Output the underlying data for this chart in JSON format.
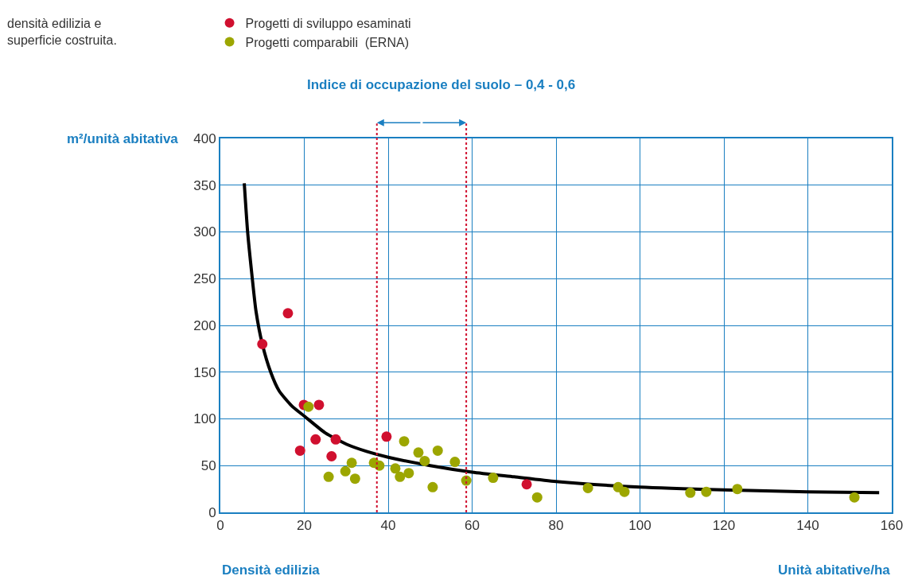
{
  "chart_data": {
    "type": "scatter",
    "title": "Indice di occupazione del suolo – 0,4 - 0,6",
    "xlabel": "Unità abitative/ha",
    "ylabel": "m²/unità abitativa",
    "annotations": [
      "densità edilizia e\nsuperficie costruita.",
      "Densità edilizia"
    ],
    "xlim": [
      0,
      160
    ],
    "xticks": [
      0,
      20,
      40,
      60,
      80,
      100,
      120,
      140,
      160
    ],
    "ylim": [
      0,
      400
    ],
    "yticks": [
      0,
      50,
      100,
      150,
      200,
      250,
      300,
      350,
      400
    ],
    "grid": true,
    "legend": "top",
    "marker": "circle",
    "ref_lines": [
      {
        "axis": "x",
        "value": 37.3,
        "color": "#d0102f",
        "line_style": "dotted"
      },
      {
        "axis": "x",
        "value": 58.6,
        "color": "#d0102f",
        "line_style": "dotted"
      }
    ],
    "series": [
      {
        "type": "line",
        "color": "#000000",
        "line_style": "solid",
        "marker": "none",
        "x": [
          5.7,
          6.5,
          7.5,
          8.5,
          10,
          12,
          14,
          17,
          20,
          25,
          30,
          35,
          40,
          50,
          60,
          70,
          80,
          100,
          120,
          140,
          157
        ],
        "values": [
          352,
          300,
          255,
          215,
          180,
          150,
          130,
          114,
          103,
          85,
          73,
          65,
          59,
          50,
          43,
          38,
          33,
          27,
          24,
          22,
          21
        ]
      },
      {
        "name": "Progetti di sviluppo esaminati",
        "color": "#d0102f",
        "x": [
          10.0,
          16.1,
          19.9,
          23.5,
          19.0,
          22.7,
          27.5,
          26.5,
          39.6,
          73.0
        ],
        "values": [
          180,
          213,
          115,
          115,
          66,
          78,
          78,
          60,
          81,
          30
        ]
      },
      {
        "name": "Progetti comparabili  (ERNA)",
        "color": "#9ca600",
        "x": [
          21.0,
          25.8,
          29.8,
          31.3,
          32.1,
          36.6,
          37.9,
          41.7,
          42.8,
          43.8,
          44.9,
          47.2,
          48.7,
          50.6,
          51.8,
          55.9,
          58.6,
          65.0,
          75.5,
          87.6,
          94.8,
          96.3,
          112.0,
          115.8,
          123.2,
          151.1
        ],
        "values": [
          113,
          38,
          44,
          53,
          36,
          53,
          50,
          47,
          38,
          76,
          42,
          64,
          55,
          27,
          66,
          54,
          34,
          37,
          16,
          26,
          27,
          22,
          21,
          22,
          25,
          16
        ]
      }
    ]
  }
}
